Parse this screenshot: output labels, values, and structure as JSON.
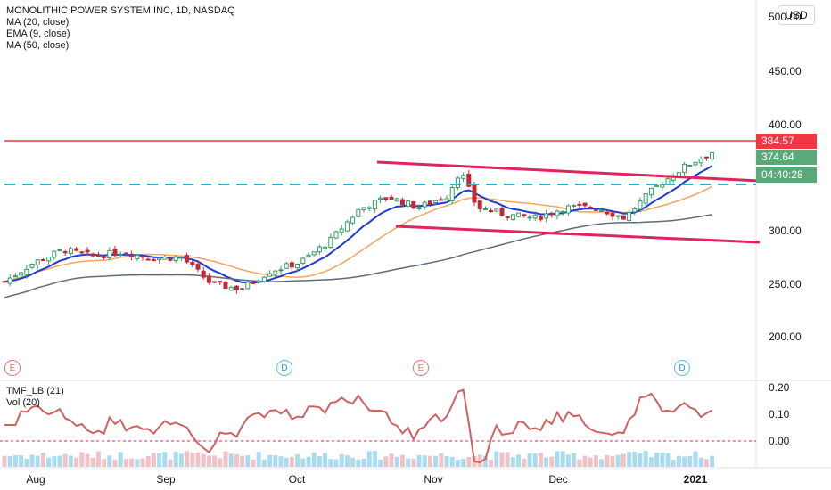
{
  "header": {
    "title": "MONOLITHIC POWER SYSTEM INC, 1D, NASDAQ",
    "indicators": [
      "MA (20, close)",
      "EMA (9, close)",
      "MA (50, close)"
    ],
    "currency_button": "USD"
  },
  "price_tags": [
    {
      "label": "384.57",
      "color": "#f23645"
    },
    {
      "label": "374.64",
      "color": "#5ba879"
    },
    {
      "label": "04:40:28",
      "color": "#5ba879"
    }
  ],
  "y_axis": {
    "ticks": [
      "500.00",
      "450.00",
      "400.00",
      "300.00",
      "250.00",
      "200.00"
    ]
  },
  "x_axis": {
    "labels": [
      "Aug",
      "Sep",
      "Oct",
      "Nov",
      "Dec",
      "2021"
    ]
  },
  "events": [
    "E",
    "D",
    "E",
    "D"
  ],
  "indicator_panel": {
    "legend": [
      "TMF_LB (21)",
      "Vol (20)"
    ],
    "ticks": [
      "0.20",
      "0.10",
      "0.00"
    ]
  },
  "chart_data": {
    "type": "line",
    "title": "MONOLITHIC POWER SYSTEM INC, 1D, NASDAQ",
    "ylim": [
      160,
      510
    ],
    "resistance_level": 384.57,
    "dashed_support_level": 341,
    "last_price": 374.64,
    "close_series": [
      {
        "date": "2020-07-21",
        "close": 252
      },
      {
        "date": "2020-07-28",
        "close": 270
      },
      {
        "date": "2020-08-04",
        "close": 282
      },
      {
        "date": "2020-08-11",
        "close": 276
      },
      {
        "date": "2020-08-18",
        "close": 280
      },
      {
        "date": "2020-08-25",
        "close": 274
      },
      {
        "date": "2020-09-01",
        "close": 275
      },
      {
        "date": "2020-09-08",
        "close": 250
      },
      {
        "date": "2020-09-15",
        "close": 245
      },
      {
        "date": "2020-09-22",
        "close": 262
      },
      {
        "date": "2020-09-29",
        "close": 270
      },
      {
        "date": "2020-10-06",
        "close": 290
      },
      {
        "date": "2020-10-13",
        "close": 320
      },
      {
        "date": "2020-10-20",
        "close": 332
      },
      {
        "date": "2020-10-27",
        "close": 322
      },
      {
        "date": "2020-11-03",
        "close": 333
      },
      {
        "date": "2020-11-06",
        "close": 357
      },
      {
        "date": "2020-11-10",
        "close": 322
      },
      {
        "date": "2020-11-17",
        "close": 315
      },
      {
        "date": "2020-11-24",
        "close": 312
      },
      {
        "date": "2020-12-01",
        "close": 322
      },
      {
        "date": "2020-12-08",
        "close": 322
      },
      {
        "date": "2020-12-15",
        "close": 312
      },
      {
        "date": "2020-12-22",
        "close": 340
      },
      {
        "date": "2020-12-29",
        "close": 360
      },
      {
        "date": "2021-01-05",
        "close": 374.64
      }
    ],
    "series": [
      {
        "name": "MA (20, close)",
        "color": "#f7a35c"
      },
      {
        "name": "EMA (9, close)",
        "color": "#1e3ad9"
      },
      {
        "name": "MA (50, close)",
        "color": "#5d6d7e"
      },
      {
        "name": "TMF_LB (21)",
        "color": "#d35f5f"
      },
      {
        "name": "Vol (20)",
        "color": "#9dd1f2"
      }
    ]
  }
}
